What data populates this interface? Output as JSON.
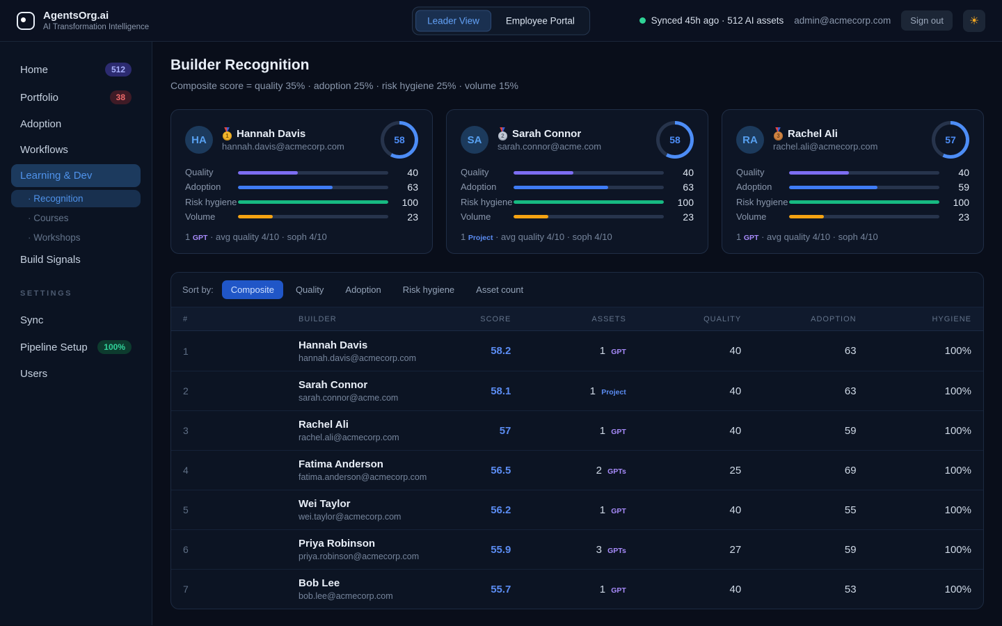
{
  "theme": {
    "accent_blue": "#4d8df6",
    "score_blue": "#5b8cf2",
    "asset_purple": "#a78bfa",
    "ring_track": "#27344c",
    "sync_green": "#2fd396"
  },
  "topbar": {
    "brand": {
      "title": "AgentsOrg.ai",
      "subtitle": "AI Transformation Intelligence"
    },
    "view_tabs": [
      {
        "label": "Leader View",
        "active": true
      },
      {
        "label": "Employee Portal",
        "active": false
      }
    ],
    "sync_status": "Synced 45h ago · 512 AI assets",
    "user_email": "admin@acmecorp.com",
    "sign_out_label": "Sign out",
    "theme_toggle_icon": "sun-icon",
    "theme_toggle_glyph": "☀"
  },
  "sidebar": {
    "items": [
      {
        "label": "Home",
        "badge": "512",
        "badge_type": "indigo"
      },
      {
        "label": "Portfolio",
        "badge": "38",
        "badge_type": "red"
      },
      {
        "label": "Adoption"
      },
      {
        "label": "Workflows"
      },
      {
        "label": "Learning & Dev",
        "active": true
      },
      {
        "label": "Recognition",
        "sub": true,
        "active": true
      },
      {
        "label": "Courses",
        "sub": true
      },
      {
        "label": "Workshops",
        "sub": true
      },
      {
        "label": "Build Signals"
      }
    ],
    "section_label": "SETTINGS",
    "settings_items": [
      {
        "label": "Sync"
      },
      {
        "label": "Pipeline Setup",
        "badge": "100%",
        "badge_type": "green"
      },
      {
        "label": "Users"
      }
    ]
  },
  "page": {
    "title": "Builder Recognition",
    "subtitle": "Composite score = quality 35% · adoption 25% · risk hygiene 25% · volume 15%"
  },
  "metric_colors": {
    "Quality": "#7c6df2",
    "Adoption": "#3f7cf5",
    "Risk hygiene": "#17b981",
    "Volume": "#f5a312"
  },
  "cards": [
    {
      "initials": "HA",
      "medal": "gold",
      "medal_rank": "1",
      "name": "Hannah Davis",
      "email": "hannah.davis@acmecorp.com",
      "score": 58,
      "metrics": [
        {
          "label": "Quality",
          "value": 40
        },
        {
          "label": "Adoption",
          "value": 63
        },
        {
          "label": "Risk hygiene",
          "value": 100
        },
        {
          "label": "Volume",
          "value": 23
        }
      ],
      "footer": {
        "count": "1",
        "asset_type": "GPT",
        "detail": "· avg quality 4/10 · soph 4/10"
      }
    },
    {
      "initials": "SA",
      "medal": "silver",
      "medal_rank": "2",
      "name": "Sarah Connor",
      "email": "sarah.connor@acme.com",
      "score": 58,
      "metrics": [
        {
          "label": "Quality",
          "value": 40
        },
        {
          "label": "Adoption",
          "value": 63
        },
        {
          "label": "Risk hygiene",
          "value": 100
        },
        {
          "label": "Volume",
          "value": 23
        }
      ],
      "footer": {
        "count": "1",
        "asset_type": "Project",
        "detail": "· avg quality 4/10 · soph 4/10"
      }
    },
    {
      "initials": "RA",
      "medal": "bronze",
      "medal_rank": "3",
      "name": "Rachel Ali",
      "email": "rachel.ali@acmecorp.com",
      "score": 57,
      "metrics": [
        {
          "label": "Quality",
          "value": 40
        },
        {
          "label": "Adoption",
          "value": 59
        },
        {
          "label": "Risk hygiene",
          "value": 100
        },
        {
          "label": "Volume",
          "value": 23
        }
      ],
      "footer": {
        "count": "1",
        "asset_type": "GPT",
        "detail": "· avg quality 4/10 · soph 4/10"
      }
    }
  ],
  "leaderboard": {
    "sort_label": "Sort by:",
    "sort_options": [
      {
        "label": "Composite",
        "active": true
      },
      {
        "label": "Quality",
        "active": false
      },
      {
        "label": "Adoption",
        "active": false
      },
      {
        "label": "Risk hygiene",
        "active": false
      },
      {
        "label": "Asset count",
        "active": false
      }
    ],
    "columns": [
      "#",
      "BUILDER",
      "SCORE",
      "ASSETS",
      "QUALITY",
      "ADOPTION",
      "HYGIENE"
    ],
    "rows": [
      {
        "rank": "1",
        "name": "Hannah Davis",
        "email": "hannah.davis@acmecorp.com",
        "score": "58.2",
        "asset_count": "1",
        "asset_type": "GPT",
        "quality": "40",
        "adoption": "63",
        "hygiene": "100%"
      },
      {
        "rank": "2",
        "name": "Sarah Connor",
        "email": "sarah.connor@acme.com",
        "score": "58.1",
        "asset_count": "1",
        "asset_type": "Project",
        "quality": "40",
        "adoption": "63",
        "hygiene": "100%"
      },
      {
        "rank": "3",
        "name": "Rachel Ali",
        "email": "rachel.ali@acmecorp.com",
        "score": "57",
        "asset_count": "1",
        "asset_type": "GPT",
        "quality": "40",
        "adoption": "59",
        "hygiene": "100%"
      },
      {
        "rank": "4",
        "name": "Fatima Anderson",
        "email": "fatima.anderson@acmecorp.com",
        "score": "56.5",
        "asset_count": "2",
        "asset_type": "GPTs",
        "quality": "25",
        "adoption": "69",
        "hygiene": "100%"
      },
      {
        "rank": "5",
        "name": "Wei Taylor",
        "email": "wei.taylor@acmecorp.com",
        "score": "56.2",
        "asset_count": "1",
        "asset_type": "GPT",
        "quality": "40",
        "adoption": "55",
        "hygiene": "100%"
      },
      {
        "rank": "6",
        "name": "Priya Robinson",
        "email": "priya.robinson@acmecorp.com",
        "score": "55.9",
        "asset_count": "3",
        "asset_type": "GPTs",
        "quality": "27",
        "adoption": "59",
        "hygiene": "100%"
      },
      {
        "rank": "7",
        "name": "Bob Lee",
        "email": "bob.lee@acmecorp.com",
        "score": "55.7",
        "asset_count": "1",
        "asset_type": "GPT",
        "quality": "40",
        "adoption": "53",
        "hygiene": "100%"
      }
    ]
  }
}
